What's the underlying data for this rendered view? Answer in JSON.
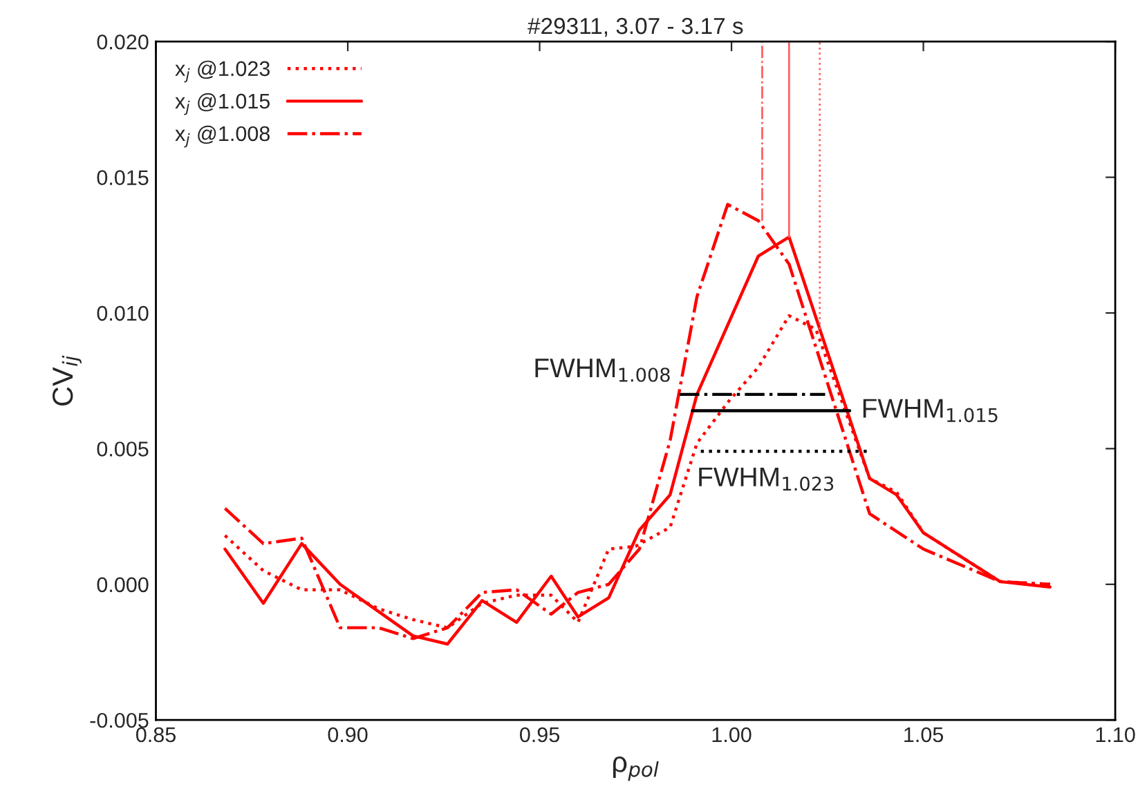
{
  "chart_data": {
    "type": "line",
    "title": "#29311, 3.07 - 3.17 s",
    "xlabel": "ρ$_{pol}$",
    "ylabel": "CV$_{ij}$",
    "xlim": [
      0.85,
      1.1
    ],
    "ylim": [
      -0.005,
      0.02
    ],
    "xticks": [
      0.85,
      {
        "value": 0.9,
        "label": "0.90"
      },
      0.95,
      {
        "value": 1.0,
        "label": "1.00"
      },
      1.05,
      {
        "value": 1.1,
        "label": "1.10"
      }
    ],
    "yticks": [
      -0.005,
      {
        "value": 0,
        "label": "0.000"
      },
      {
        "value": 0.005,
        "label": "0.005"
      },
      {
        "value": 0.01,
        "label": "0.010"
      },
      {
        "value": 0.015,
        "label": "0.015"
      },
      {
        "value": 0.02,
        "label": "0.020"
      }
    ],
    "grid": false,
    "legend": "top left",
    "marker": "none",
    "series": [
      {
        "name": "x$_{j}$ @1.023",
        "color": "#ff0000",
        "line_style": "dotted",
        "x": [
          0.868,
          0.878,
          0.888,
          0.898,
          0.908,
          0.917,
          0.926,
          0.935,
          0.944,
          0.953,
          0.96,
          0.968,
          0.975,
          0.984,
          0.991,
          0.999,
          1.007,
          1.015,
          1.022,
          1.036,
          1.043,
          1.05,
          1.07,
          1.083
        ],
        "values": [
          0.0018,
          0.0005,
          -0.0002,
          -0.0002,
          -0.0009,
          -0.0013,
          -0.0016,
          -0.0007,
          -0.0004,
          -0.0004,
          -0.0014,
          0.0013,
          0.0014,
          0.0021,
          0.0052,
          0.0067,
          0.008,
          0.0099,
          0.0094,
          0.0039,
          0.0034,
          0.0019,
          0.0001,
          0.0
        ]
      },
      {
        "name": "x$_{j}$ @1.015",
        "color": "#ff0000",
        "line_style": "solid",
        "x": [
          0.868,
          0.878,
          0.888,
          0.898,
          0.917,
          0.926,
          0.935,
          0.944,
          0.953,
          0.96,
          0.968,
          0.976,
          0.984,
          0.991,
          1.007,
          1.015,
          1.036,
          1.043,
          1.05,
          1.07,
          1.083
        ],
        "values": [
          0.0013,
          -0.0007,
          0.0015,
          0.0,
          -0.0019,
          -0.0022,
          -0.0006,
          -0.0014,
          0.0003,
          -0.0012,
          -0.0005,
          0.002,
          0.0033,
          0.007,
          0.0121,
          0.0128,
          0.0039,
          0.0033,
          0.0019,
          0.0001,
          -0.0001
        ]
      },
      {
        "name": "x$_{j}$ @1.008",
        "color": "#ff0000",
        "line_style": "dashdot",
        "x": [
          0.868,
          0.878,
          0.888,
          0.898,
          0.908,
          0.917,
          0.926,
          0.935,
          0.944,
          0.953,
          0.96,
          0.968,
          0.976,
          0.984,
          0.991,
          0.999,
          1.007,
          1.015,
          1.036,
          1.05,
          1.07,
          1.083
        ],
        "values": [
          0.0028,
          0.0015,
          0.0017,
          -0.0016,
          -0.0016,
          -0.002,
          -0.0016,
          -0.0003,
          -0.0002,
          -0.0011,
          -0.0003,
          0.0,
          0.0013,
          0.0053,
          0.0106,
          0.014,
          0.0134,
          0.0118,
          0.0026,
          0.0013,
          0.0001,
          0.0
        ]
      },
      {
        "color": "#ff6060",
        "line_style": "dotted",
        "x": [
          1.023,
          1.023
        ],
        "values": [
          0.0094,
          0.02
        ]
      },
      {
        "color": "#ff6060",
        "line_style": "solid",
        "x": [
          1.015,
          1.015
        ],
        "values": [
          0.0128,
          0.02
        ]
      },
      {
        "color": "#ff6060",
        "line_style": "dashdot",
        "x": [
          1.008,
          1.008
        ],
        "values": [
          0.0134,
          0.02
        ]
      },
      {
        "color": "#000000",
        "line_style": "dashdot",
        "x": [
          0.9865,
          1.0244
        ],
        "values": [
          0.007,
          0.007
        ]
      },
      {
        "color": "#000000",
        "line_style": "solid",
        "x": [
          0.9898,
          1.0308
        ],
        "values": [
          0.0064,
          0.0064
        ]
      },
      {
        "color": "#000000",
        "line_style": "dotted",
        "x": [
          0.992,
          1.0355
        ],
        "values": [
          0.0049,
          0.0049
        ]
      }
    ],
    "annotations": [
      {
        "text": "FWHM$_{1.008}$",
        "x": 0.9865,
        "y": 0.007
      },
      {
        "text": "FWHM$_{1.015}$",
        "x": 1.0308,
        "y": 0.0064
      },
      {
        "text": "FWHM$_{1.023}$",
        "x": 0.992,
        "y": 0.0049
      }
    ]
  }
}
